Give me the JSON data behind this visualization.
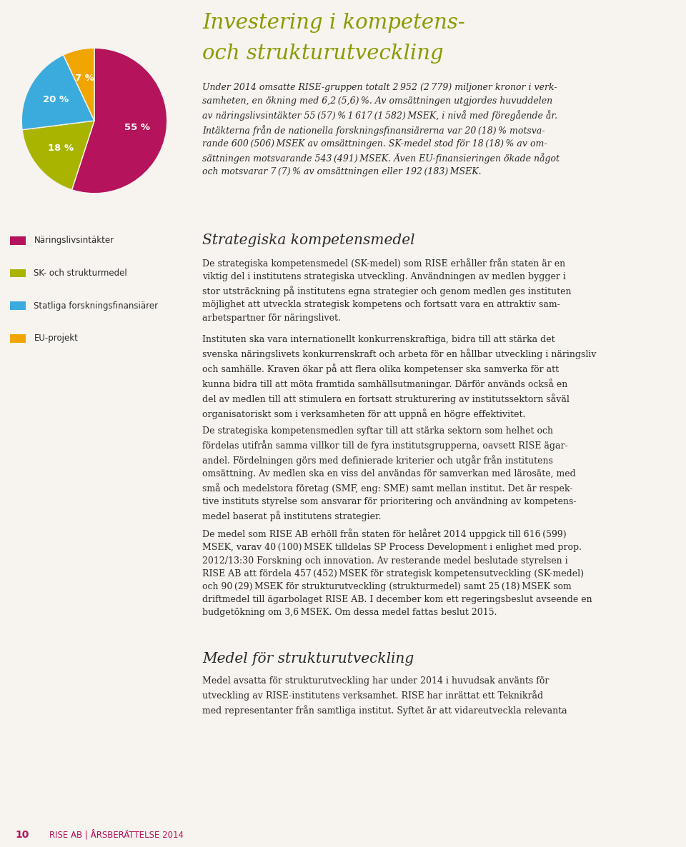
{
  "pie_values": [
    55,
    18,
    20,
    7
  ],
  "pie_colors": [
    "#b5135b",
    "#a8b400",
    "#3aabdc",
    "#f0a500"
  ],
  "pie_labels": [
    "55 %",
    "18 %",
    "20 %",
    "7 %"
  ],
  "legend_labels": [
    "Näringslivsintäkter",
    "SK- och strukturmedel",
    "Statliga forskningsfinansiärer",
    "EU-projekt"
  ],
  "title_line1": "Investering i kompetens-",
  "title_line2": "och strukturutveckling",
  "title_color": "#8b9a00",
  "body_text_italic": "Under 2014 omsatte RISE-gruppen totalt 2 952 (2 779) miljoner kronor i verk-\nsamheten, en ökning med 6,2 (5,6) %. Av omsättningen utgjordes huvuddelen\nav näringslivsintäkter 55 (57) % 1 617 (1 582) MSEK, i nivå med föregående år.\nIntäkterna från de nationella forskningsfinansiärerna var 20 (18) % motsva-\nrande 600 (506) MSEK av omsättningen. SK-medel stod för 18 (18) % av om-\nsättningen motsvarande 543 (491) MSEK. Även EU-finansieringen ökade något\noch motsvarar 7 (7) % av omsättningen eller 192 (183) MSEK.",
  "section_title1": "Strategiska kompetensmedel",
  "section_body1_p1": "De strategiska kompetensmedel (SK-medel) som RISE erhåller från staten är en\nviktig del i institutens strategiska utveckling. Användningen av medlen bygger i\nstor utsträckning på institutens egna strategier och genom medlen ges instituten\nmöjlighet att utveckla strategisk kompetens och fortsatt vara en attraktiv sam-\narbetspartner för näringslivet.",
  "section_body1_p2": "Instituten ska vara internationellt konkurrenskraftiga, bidra till att stärka det\nsvenska näringslivets konkurrenskraft och arbeta för en hållbar utveckling i näringsliv\noch samhälle. Kraven ökar på att flera olika kompetenser ska samverka för att\nkunna bidra till att möta framtida samhällsutmaningar. Därför används också en\ndel av medlen till att stimulera en fortsatt strukturering av institutssektorn såväl\norganisatoriskt som i verksamheten för att uppnå en högre effektivitet.",
  "section_body1_p3": "De strategiska kompetensmedlen syftar till att stärka sektorn som helhet och\nfördelas utifrån samma villkor till de fyra institutsgrupperna, oavsett RISE ägar-\nandel. Fördelningen görs med definierade kriterier och utgår från institutens\nomsättning. Av medlen ska en viss del användas för samverkan med lärosäte, med\nsmå och medelstora företag (SMF, eng: SME) samt mellan institut. Det är respek-\ntive instituts styrelse som ansvarar för prioritering och användning av kompetens-\nmedel baserat på institutens strategier.",
  "section_body1_p4": "De medel som RISE AB erhöll från staten för helåret 2014 uppgick till 616 (599)\nMSEK, varav 40 (100) MSEK tilldelas SP Process Development i enlighet med prop.\n2012/13:30 Forskning och innovation. Av resterande medel beslutade styrelsen i\nRISE AB att fördela 457 (452) MSEK för strategisk kompetensutveckling (SK-medel)\noch 90 (29) MSEK för strukturutveckling (strukturmedel) samt 25 (18) MSEK som\ndriftmedel till ägarbolaget RISE AB. I december kom ett regeringsbeslut avseende en\nbudgetökning om 3,6 MSEK. Om dessa medel fattas beslut 2015.",
  "section_title2": "Medel för strukturutveckling",
  "section_body2": "Medel avsatta för strukturutveckling har under 2014 i huvudsak använts för\nutveckling av RISE-institutens verksamhet. RISE har inrättat ett Teknikråd\nmed representanter från samtliga institut. Syftet är att vidareutveckla relevanta",
  "footer_num": "10",
  "footer_text": "RISE AB | ÅRSBERÄTTELSE 2014",
  "footer_color": "#b5135b",
  "bg_color": "#f7f3ee"
}
